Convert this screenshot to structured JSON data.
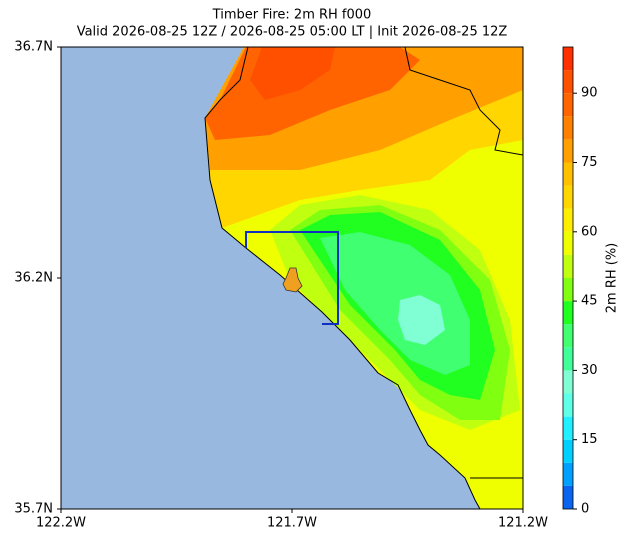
{
  "chart_data": {
    "type": "contour-map",
    "title": "Timber Fire: 2m RH f000",
    "subtitle": "Valid 2026-08-25 12Z / 2026-08-25 05:00 LT | Init 2026-08-25 12Z",
    "xlim": [
      -122.2,
      -121.2
    ],
    "xticks": [
      {
        "value": -122.2,
        "label": "122.2W"
      },
      {
        "value": -121.7,
        "label": "121.7W"
      },
      {
        "value": -121.2,
        "label": "121.2W"
      }
    ],
    "ylim": [
      35.7,
      36.7
    ],
    "yticks": [
      {
        "value": 35.7,
        "label": "35.7N"
      },
      {
        "value": 36.2,
        "label": "36.2N"
      },
      {
        "value": 36.7,
        "label": "36.7N"
      }
    ],
    "colorbar": {
      "label": "2m RH (%)",
      "lim": [
        0,
        100
      ],
      "ticks": [
        0,
        15,
        30,
        45,
        60,
        75,
        90
      ],
      "levels": [
        0,
        5,
        10,
        15,
        20,
        25,
        30,
        35,
        40,
        45,
        50,
        55,
        60,
        65,
        70,
        75,
        80,
        85,
        90,
        95,
        100
      ],
      "colors": [
        "#0a64f0",
        "#00a0ff",
        "#00d0ff",
        "#20f0ff",
        "#60ffe8",
        "#80ffd4",
        "#40ff9a",
        "#40ff70",
        "#20ff20",
        "#80ff10",
        "#c0ff10",
        "#f0ff00",
        "#ffee00",
        "#ffd600",
        "#ffc000",
        "#ffa000",
        "#ff8000",
        "#ff6400",
        "#ff5000",
        "#ff3000"
      ]
    }
  }
}
